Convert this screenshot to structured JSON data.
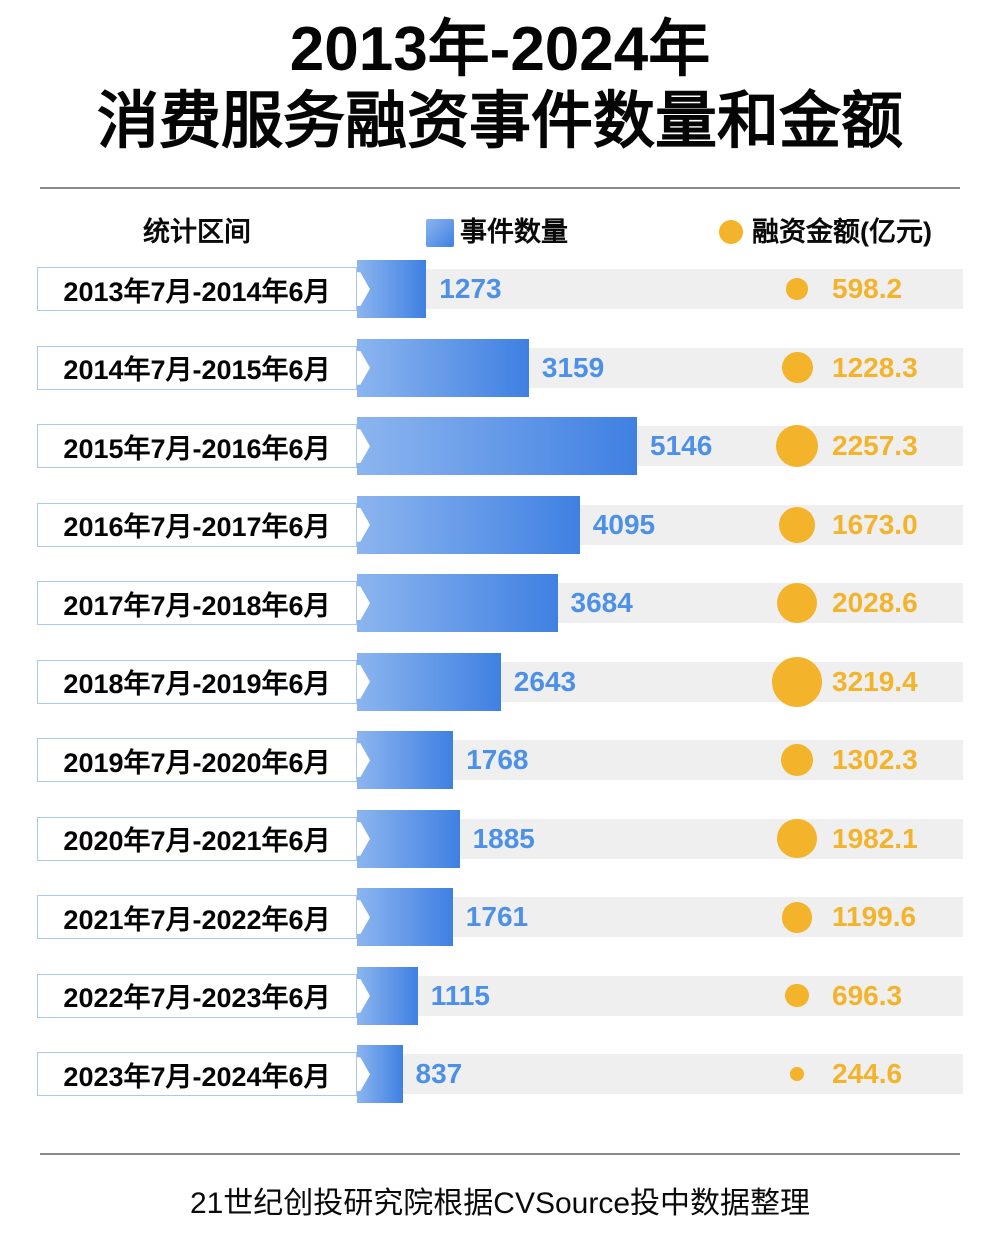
{
  "title": {
    "line1": "2013年-2024年",
    "line2": "消费服务融资事件数量和金额"
  },
  "legend": {
    "period_header": "统计区间",
    "count_label": "事件数量",
    "amount_label": "融资金额(亿元)"
  },
  "footer": {
    "source": "21世纪创投研究院根据CVSource投中数据整理"
  },
  "colors": {
    "bar_light": "#8CB5EF",
    "bar_dark": "#3F80E2",
    "count_text": "#4C90E8",
    "amount": "#F3B32A",
    "track": "#EFEFEF",
    "box_border": "#A9C9F2",
    "divider": "#8A8A8A"
  },
  "chart_data": {
    "type": "bar",
    "title": "2013年-2024年消费服务融资事件数量和金额",
    "orientation": "horizontal",
    "categories": [
      "2013年7月-2014年6月",
      "2014年7月-2015年6月",
      "2015年7月-2016年6月",
      "2016年7月-2017年6月",
      "2017年7月-2018年6月",
      "2018年7月-2019年6月",
      "2019年7月-2020年6月",
      "2020年7月-2021年6月",
      "2021年7月-2022年6月",
      "2022年7月-2023年6月",
      "2023年7月-2024年6月"
    ],
    "series": [
      {
        "name": "事件数量",
        "type": "bar",
        "values": [
          1273,
          3159,
          5146,
          4095,
          3684,
          2643,
          1768,
          1885,
          1761,
          1115,
          837
        ]
      },
      {
        "name": "融资金额(亿元)",
        "type": "bubble",
        "values": [
          598.2,
          1228.3,
          2257.3,
          1673.0,
          2028.6,
          3219.4,
          1302.3,
          1982.1,
          1199.6,
          696.3,
          244.6
        ],
        "value_labels": [
          "598.2",
          "1228.3",
          "2257.3",
          "1673.0",
          "2028.6",
          "3219.4",
          "1302.3",
          "1982.1",
          "1199.6",
          "696.3",
          "244.6"
        ]
      }
    ],
    "xlim_count": [
      0,
      5146
    ],
    "legend_position": "top",
    "grid": false
  }
}
